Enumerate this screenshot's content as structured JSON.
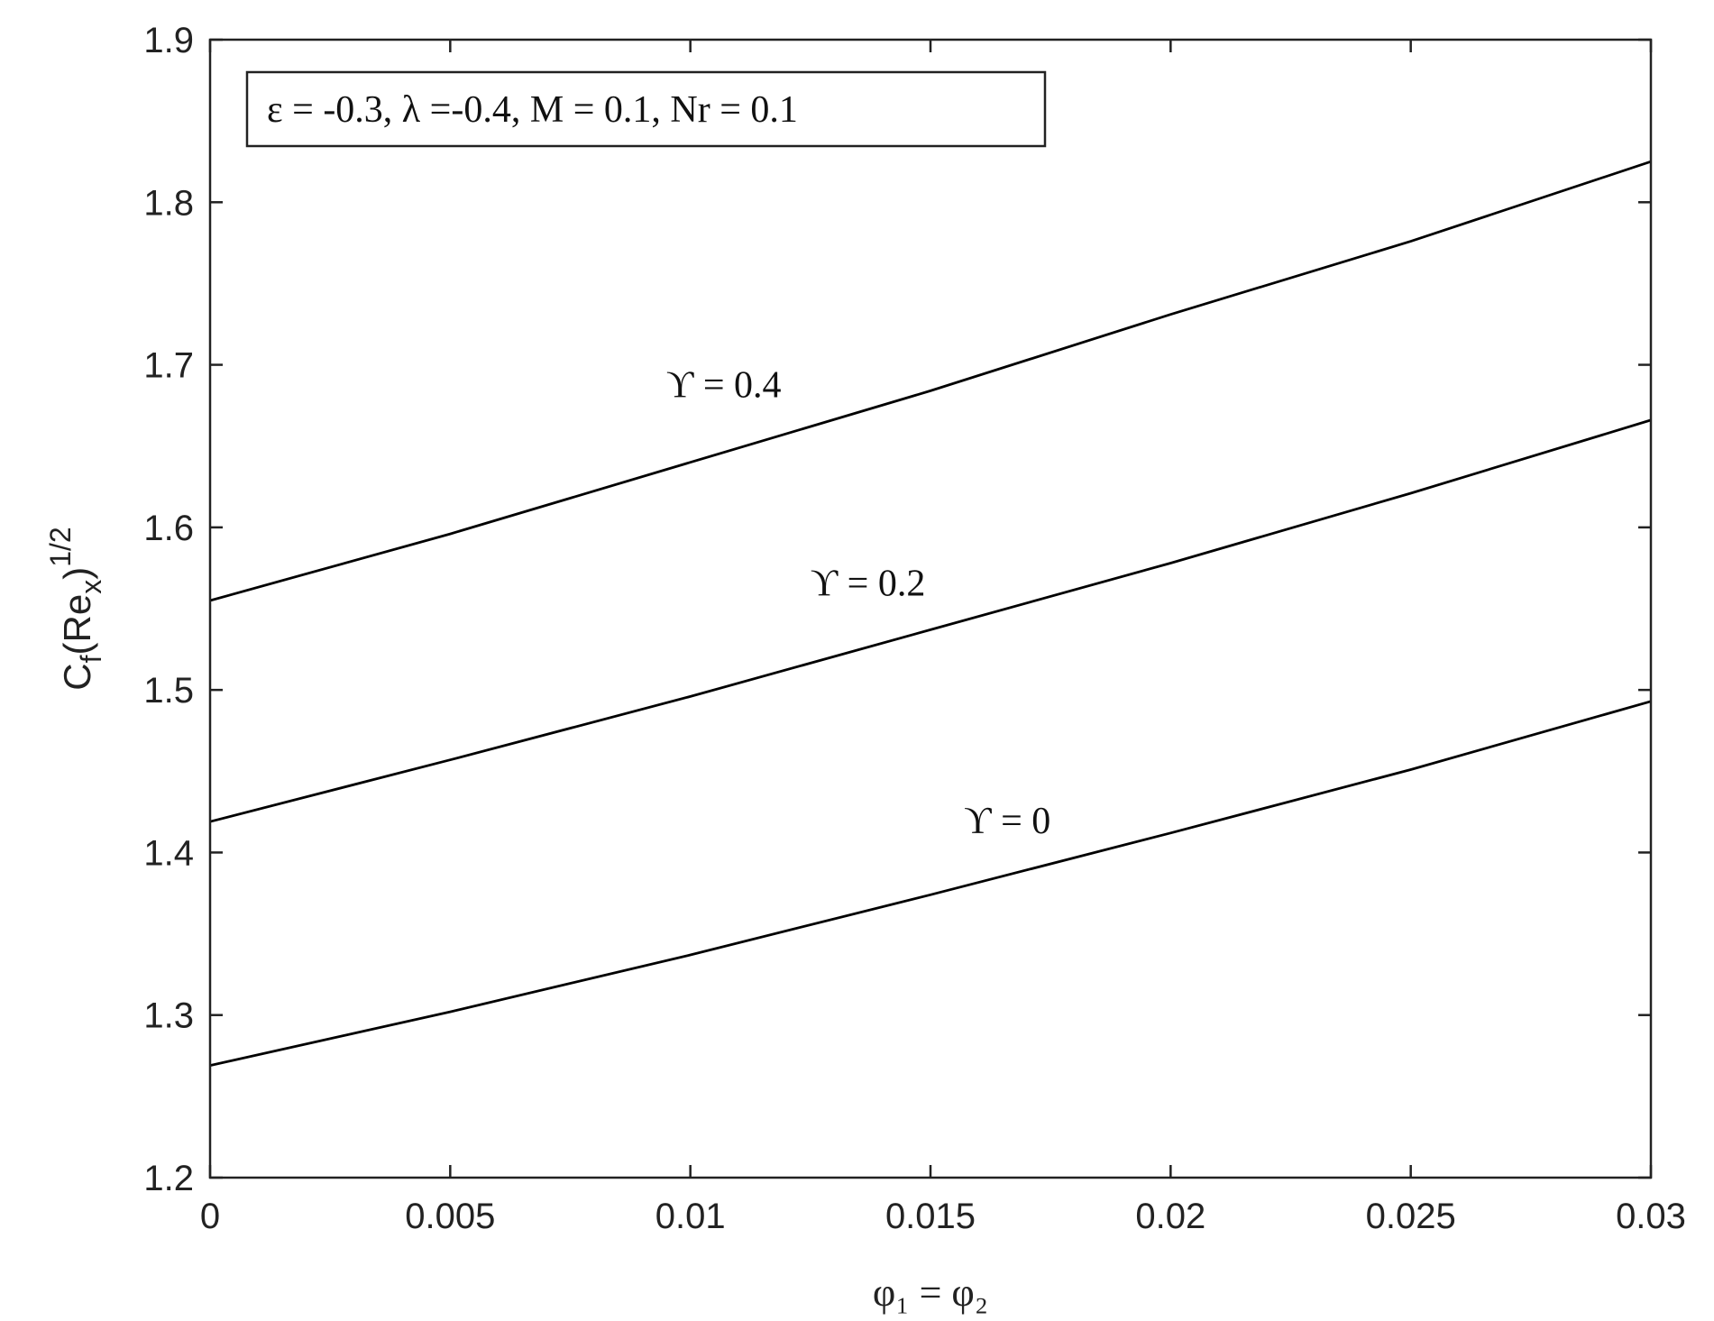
{
  "chart_data": {
    "type": "line",
    "xlabel": "φ₁ = φ₂",
    "ylabel": "C_f(Re_x)^1/2",
    "ylabel_parts": {
      "base": "C",
      "sub_f": "f",
      "open": "(Re",
      "sub_x": "x",
      "close": ")",
      "sup": "1/2"
    },
    "xlim": [
      0,
      0.03
    ],
    "ylim": [
      1.2,
      1.9
    ],
    "x_ticks": [
      0,
      0.005,
      0.01,
      0.015,
      0.02,
      0.025,
      0.03
    ],
    "x_tick_labels": [
      "0",
      "0.005",
      "0.01",
      "0.015",
      "0.02",
      "0.025",
      "0.03"
    ],
    "y_ticks": [
      1.2,
      1.3,
      1.4,
      1.5,
      1.6,
      1.7,
      1.8,
      1.9
    ],
    "y_tick_labels": [
      "1.2",
      "1.3",
      "1.4",
      "1.5",
      "1.6",
      "1.7",
      "1.8",
      "1.9"
    ],
    "grid": false,
    "legend_box": "ε = -0.3, λ =-0.4, M = 0.1, Nr = 0.1",
    "legend_placement": "top-left",
    "line_color": "#000000",
    "x": [
      0,
      0.005,
      0.01,
      0.015,
      0.02,
      0.025,
      0.03
    ],
    "series": [
      {
        "name": "ϒ = 0.4",
        "values": [
          1.555,
          1.596,
          1.64,
          1.684,
          1.731,
          1.776,
          1.825
        ],
        "label_at": [
          0.0095,
          1.68
        ]
      },
      {
        "name": "ϒ = 0.2",
        "values": [
          1.419,
          1.457,
          1.496,
          1.537,
          1.578,
          1.621,
          1.666
        ],
        "label_at": [
          0.0125,
          1.558
        ]
      },
      {
        "name": "ϒ = 0",
        "values": [
          1.269,
          1.302,
          1.337,
          1.374,
          1.412,
          1.451,
          1.493
        ],
        "label_at": [
          0.0157,
          1.412
        ]
      }
    ]
  }
}
